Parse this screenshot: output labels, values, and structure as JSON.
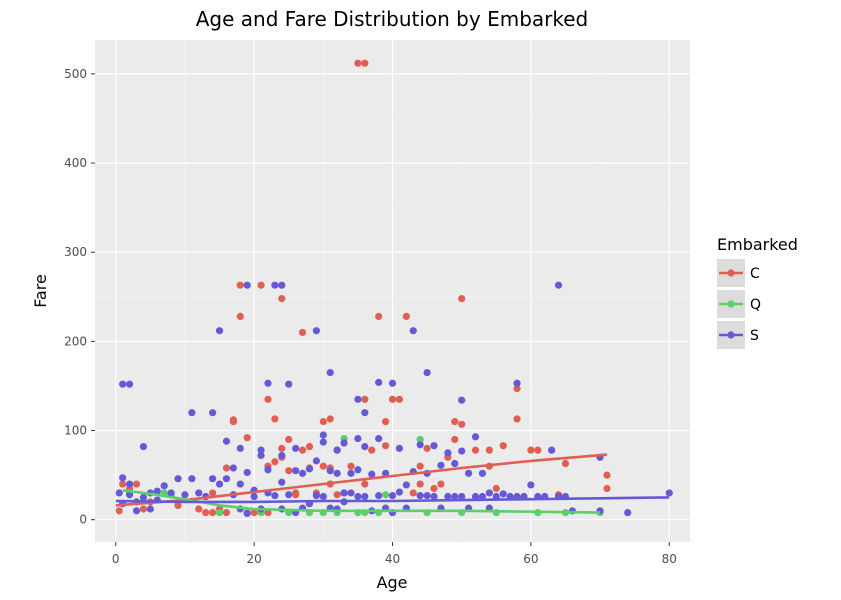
{
  "chart_data": {
    "type": "scatter",
    "title": "Age and Fare Distribution by Embarked",
    "xlabel": "Age",
    "ylabel": "Fare",
    "xlim": [
      -3,
      83
    ],
    "ylim": [
      -25,
      538
    ],
    "xticks": [
      0,
      20,
      40,
      60,
      80
    ],
    "yticks": [
      0,
      100,
      200,
      300,
      400,
      500
    ],
    "grid": true,
    "legend": {
      "title": "Embarked",
      "position": "right"
    },
    "series": [
      {
        "name": "C",
        "color": "#e15f52",
        "points": [
          [
            0.5,
            10
          ],
          [
            1,
            40
          ],
          [
            2,
            35
          ],
          [
            3,
            40
          ],
          [
            4,
            12
          ],
          [
            5,
            20
          ],
          [
            8,
            28
          ],
          [
            9,
            16
          ],
          [
            12,
            12
          ],
          [
            13,
            8
          ],
          [
            14,
            8
          ],
          [
            14,
            30
          ],
          [
            15,
            12
          ],
          [
            16,
            8
          ],
          [
            16,
            58
          ],
          [
            17,
            110
          ],
          [
            17,
            112
          ],
          [
            18,
            228
          ],
          [
            18,
            263
          ],
          [
            19,
            92
          ],
          [
            20,
            8
          ],
          [
            21,
            263
          ],
          [
            22,
            8
          ],
          [
            22,
            60
          ],
          [
            22,
            135
          ],
          [
            23,
            113
          ],
          [
            23,
            65
          ],
          [
            24,
            70
          ],
          [
            24,
            80
          ],
          [
            24,
            248
          ],
          [
            25,
            55
          ],
          [
            25,
            90
          ],
          [
            26,
            28
          ],
          [
            26,
            30
          ],
          [
            27,
            210
          ],
          [
            27,
            78
          ],
          [
            28,
            58
          ],
          [
            28,
            82
          ],
          [
            29,
            30
          ],
          [
            30,
            110
          ],
          [
            30,
            60
          ],
          [
            31,
            58
          ],
          [
            31,
            113
          ],
          [
            31,
            40
          ],
          [
            32,
            78
          ],
          [
            32,
            28
          ],
          [
            33,
            30
          ],
          [
            34,
            60
          ],
          [
            35,
            512
          ],
          [
            36,
            512
          ],
          [
            36,
            135
          ],
          [
            36,
            40
          ],
          [
            37,
            78
          ],
          [
            38,
            228
          ],
          [
            39,
            83
          ],
          [
            39,
            110
          ],
          [
            40,
            135
          ],
          [
            41,
            135
          ],
          [
            42,
            228
          ],
          [
            43,
            30
          ],
          [
            44,
            60
          ],
          [
            44,
            40
          ],
          [
            45,
            80
          ],
          [
            46,
            35
          ],
          [
            47,
            40
          ],
          [
            48,
            70
          ],
          [
            49,
            90
          ],
          [
            49,
            110
          ],
          [
            50,
            248
          ],
          [
            50,
            107
          ],
          [
            52,
            78
          ],
          [
            54,
            60
          ],
          [
            54,
            78
          ],
          [
            55,
            35
          ],
          [
            56,
            83
          ],
          [
            58,
            113
          ],
          [
            58,
            147
          ],
          [
            60,
            78
          ],
          [
            61,
            78
          ],
          [
            64,
            28
          ],
          [
            65,
            63
          ],
          [
            71,
            50
          ],
          [
            71,
            35
          ]
        ],
        "trend": [
          [
            0,
            16
          ],
          [
            10,
            22
          ],
          [
            20,
            31
          ],
          [
            30,
            40
          ],
          [
            40,
            49
          ],
          [
            50,
            58
          ],
          [
            60,
            66
          ],
          [
            71,
            73
          ]
        ]
      },
      {
        "name": "Q",
        "color": "#5ccf6a",
        "points": [
          [
            2,
            30
          ],
          [
            7,
            30
          ],
          [
            8,
            28
          ],
          [
            15,
            8
          ],
          [
            19,
            8
          ],
          [
            21,
            8
          ],
          [
            25,
            8
          ],
          [
            28,
            8
          ],
          [
            30,
            8
          ],
          [
            32,
            8
          ],
          [
            33,
            91
          ],
          [
            35,
            8
          ],
          [
            36,
            8
          ],
          [
            38,
            8
          ],
          [
            39,
            28
          ],
          [
            40,
            8
          ],
          [
            44,
            90
          ],
          [
            45,
            8
          ],
          [
            50,
            8
          ],
          [
            55,
            8
          ],
          [
            61,
            8
          ],
          [
            65,
            8
          ],
          [
            70,
            8
          ]
        ],
        "trend": [
          [
            1,
            33
          ],
          [
            5,
            29
          ],
          [
            10,
            23
          ],
          [
            15,
            16
          ],
          [
            20,
            12
          ],
          [
            30,
            10
          ],
          [
            40,
            10
          ],
          [
            50,
            10
          ],
          [
            60,
            9
          ],
          [
            70,
            8
          ]
        ]
      },
      {
        "name": "S",
        "color": "#6559d8",
        "points": [
          [
            0.5,
            30
          ],
          [
            1,
            18
          ],
          [
            1,
            47
          ],
          [
            1,
            152
          ],
          [
            2,
            152
          ],
          [
            2,
            40
          ],
          [
            2,
            28
          ],
          [
            3,
            20
          ],
          [
            3,
            10
          ],
          [
            4,
            82
          ],
          [
            4,
            25
          ],
          [
            5,
            30
          ],
          [
            5,
            12
          ],
          [
            6,
            32
          ],
          [
            6,
            22
          ],
          [
            7,
            38
          ],
          [
            8,
            30
          ],
          [
            9,
            46
          ],
          [
            10,
            28
          ],
          [
            11,
            120
          ],
          [
            11,
            46
          ],
          [
            12,
            30
          ],
          [
            13,
            26
          ],
          [
            14,
            120
          ],
          [
            14,
            46
          ],
          [
            15,
            212
          ],
          [
            15,
            40
          ],
          [
            16,
            88
          ],
          [
            16,
            46
          ],
          [
            17,
            58
          ],
          [
            17,
            28
          ],
          [
            18,
            12
          ],
          [
            18,
            80
          ],
          [
            18,
            40
          ],
          [
            19,
            263
          ],
          [
            19,
            53
          ],
          [
            19,
            7
          ],
          [
            20,
            26
          ],
          [
            20,
            33
          ],
          [
            21,
            78
          ],
          [
            21,
            72
          ],
          [
            21,
            12
          ],
          [
            22,
            153
          ],
          [
            22,
            56
          ],
          [
            22,
            30
          ],
          [
            23,
            263
          ],
          [
            23,
            27
          ],
          [
            24,
            263
          ],
          [
            24,
            72
          ],
          [
            24,
            42
          ],
          [
            24,
            12
          ],
          [
            25,
            152
          ],
          [
            25,
            28
          ],
          [
            26,
            55
          ],
          [
            26,
            80
          ],
          [
            26,
            8
          ],
          [
            27,
            52
          ],
          [
            27,
            13
          ],
          [
            28,
            57
          ],
          [
            28,
            18
          ],
          [
            29,
            212
          ],
          [
            29,
            66
          ],
          [
            29,
            27
          ],
          [
            30,
            95
          ],
          [
            30,
            87
          ],
          [
            30,
            26
          ],
          [
            31,
            165
          ],
          [
            31,
            55
          ],
          [
            31,
            13
          ],
          [
            32,
            78
          ],
          [
            32,
            52
          ],
          [
            32,
            12
          ],
          [
            33,
            86
          ],
          [
            33,
            30
          ],
          [
            33,
            20
          ],
          [
            34,
            52
          ],
          [
            34,
            30
          ],
          [
            35,
            135
          ],
          [
            35,
            91
          ],
          [
            35,
            56
          ],
          [
            35,
            26
          ],
          [
            36,
            120
          ],
          [
            36,
            82
          ],
          [
            36,
            26
          ],
          [
            37,
            51
          ],
          [
            37,
            10
          ],
          [
            38,
            154
          ],
          [
            38,
            91
          ],
          [
            38,
            27
          ],
          [
            39,
            52
          ],
          [
            39,
            13
          ],
          [
            40,
            153
          ],
          [
            40,
            27
          ],
          [
            40,
            8
          ],
          [
            41,
            80
          ],
          [
            41,
            31
          ],
          [
            42,
            39
          ],
          [
            42,
            13
          ],
          [
            43,
            212
          ],
          [
            43,
            54
          ],
          [
            44,
            84
          ],
          [
            44,
            27
          ],
          [
            45,
            165
          ],
          [
            45,
            52
          ],
          [
            45,
            27
          ],
          [
            46,
            83
          ],
          [
            46,
            26
          ],
          [
            47,
            61
          ],
          [
            47,
            13
          ],
          [
            48,
            75
          ],
          [
            48,
            26
          ],
          [
            49,
            63
          ],
          [
            49,
            26
          ],
          [
            50,
            134
          ],
          [
            50,
            77
          ],
          [
            50,
            26
          ],
          [
            51,
            52
          ],
          [
            51,
            13
          ],
          [
            52,
            93
          ],
          [
            52,
            26
          ],
          [
            53,
            52
          ],
          [
            53,
            26
          ],
          [
            54,
            30
          ],
          [
            54,
            13
          ],
          [
            55,
            26
          ],
          [
            56,
            29
          ],
          [
            57,
            26
          ],
          [
            58,
            153
          ],
          [
            58,
            26
          ],
          [
            59,
            26
          ],
          [
            60,
            39
          ],
          [
            61,
            26
          ],
          [
            62,
            26
          ],
          [
            63,
            78
          ],
          [
            64,
            263
          ],
          [
            64,
            26
          ],
          [
            65,
            26
          ],
          [
            66,
            10
          ],
          [
            70,
            70
          ],
          [
            70,
            10
          ],
          [
            74,
            8
          ],
          [
            80,
            30
          ]
        ],
        "trend": [
          [
            0,
            21
          ],
          [
            10,
            20
          ],
          [
            20,
            20
          ],
          [
            30,
            21
          ],
          [
            40,
            21
          ],
          [
            50,
            22
          ],
          [
            60,
            23
          ],
          [
            70,
            24
          ],
          [
            80,
            25
          ]
        ]
      }
    ]
  }
}
